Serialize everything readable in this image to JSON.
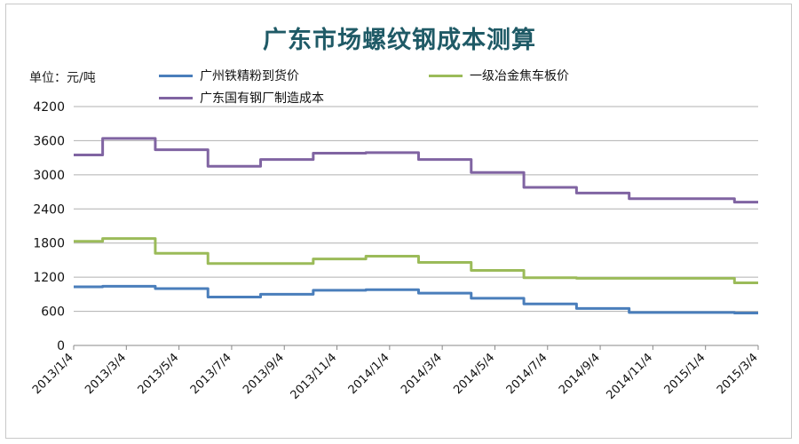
{
  "chart_data": {
    "type": "line",
    "title": "广东市场螺纹钢成本测算",
    "ylabel": "单位：元/吨",
    "xlabel": "",
    "ylim": [
      0,
      4200
    ],
    "yticks": [
      0,
      600,
      1200,
      1800,
      2400,
      3000,
      3600,
      4200
    ],
    "x": [
      "2013/1/4",
      "2013/3/4",
      "2013/5/4",
      "2013/7/4",
      "2013/9/4",
      "2013/11/4",
      "2014/1/4",
      "2014/3/4",
      "2014/5/4",
      "2014/7/4",
      "2014/9/4",
      "2014/11/4",
      "2015/1/4",
      "2015/3/4"
    ],
    "grid": true,
    "legend_position": "top",
    "series": [
      {
        "name": "广州铁精粉到货价",
        "color": "#4a7ebb",
        "values": [
          1030,
          1040,
          1000,
          850,
          900,
          970,
          980,
          920,
          830,
          730,
          650,
          580,
          580,
          570
        ]
      },
      {
        "name": "一级冶金焦车板价",
        "color": "#9bbb59",
        "values": [
          1830,
          1880,
          1620,
          1440,
          1440,
          1520,
          1570,
          1460,
          1320,
          1190,
          1180,
          1180,
          1180,
          1100
        ]
      },
      {
        "name": "广东国有钢厂制造成本",
        "color": "#8064a2",
        "values": [
          3350,
          3640,
          3440,
          3150,
          3270,
          3380,
          3390,
          3270,
          3040,
          2780,
          2680,
          2580,
          2580,
          2520
        ]
      }
    ]
  }
}
